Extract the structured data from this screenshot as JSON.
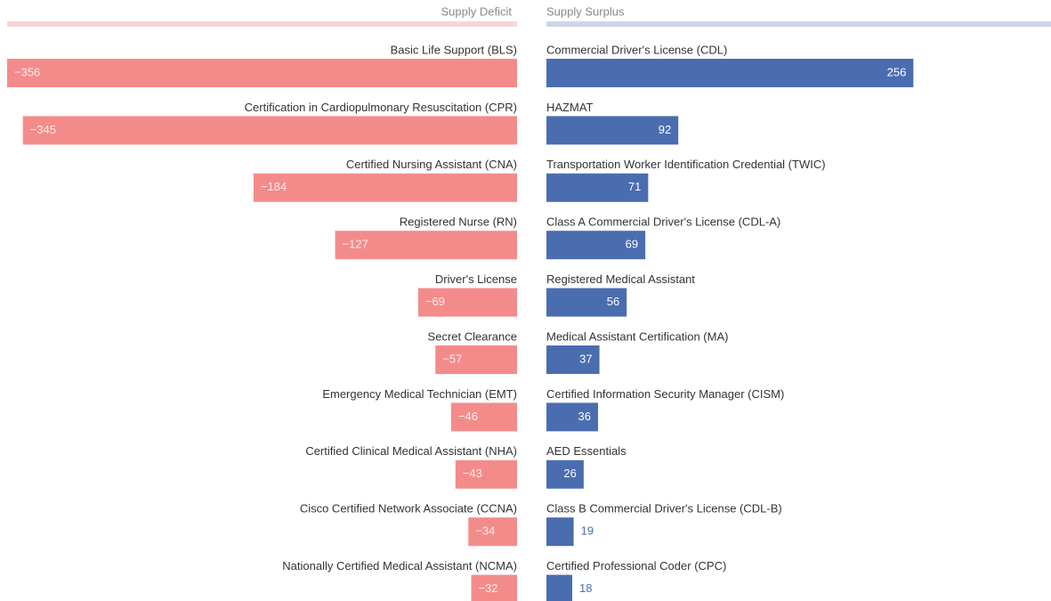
{
  "chart_data": [
    {
      "type": "bar",
      "title": "Supply Deficit",
      "band_color": "#f9d4d4",
      "color": "#f48b8b",
      "categories": [
        "Basic Life Support (BLS)",
        "Certification in Cardiopulmonary Resuscitation (CPR)",
        "Certified Nursing Assistant (CNA)",
        "Registered Nurse (RN)",
        "Driver's License",
        "Secret Clearance",
        "Emergency Medical Technician (EMT)",
        "Certified Clinical Medical Assistant (NHA)",
        "Cisco Certified Network Associate (CCNA)",
        "Nationally Certified Medical Assistant (NCMA)"
      ],
      "values": [
        -356,
        -345,
        -184,
        -127,
        -69,
        -57,
        -46,
        -43,
        -34,
        -32
      ],
      "value_labels": [
        "−356",
        "−345",
        "−184",
        "−127",
        "−69",
        "−57",
        "−46",
        "−43",
        "−34",
        "−32"
      ],
      "xlim": [
        -356,
        0
      ]
    },
    {
      "type": "bar",
      "title": "Supply Surplus",
      "band_color": "#cfd5e8",
      "color": "#4a6db0",
      "categories": [
        "Commercial Driver's License (CDL)",
        "HAZMAT",
        "Transportation Worker Identification Credential (TWIC)",
        "Class A Commercial Driver's License (CDL-A)",
        "Registered Medical Assistant",
        "Medical Assistant Certification (MA)",
        "Certified Information Security Manager (CISM)",
        "AED Essentials",
        "Class B Commercial Driver's License (CDL-B)",
        "Certified Professional Coder (CPC)"
      ],
      "values": [
        256,
        92,
        71,
        69,
        56,
        37,
        36,
        26,
        19,
        18
      ],
      "xlim": [
        0,
        352
      ]
    }
  ]
}
